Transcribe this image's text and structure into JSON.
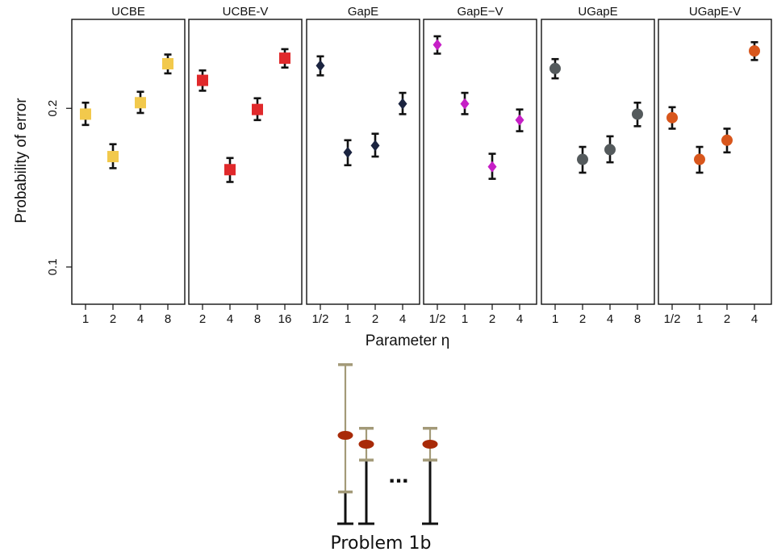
{
  "chart_data": {
    "type": "scatter",
    "ylabel": "Probability of error",
    "xlabel": "Parameter η",
    "y_scale": "log",
    "ylim": [
      0.085,
      0.295
    ],
    "y_ticks": [
      {
        "value": 0.1,
        "label": "0.1"
      },
      {
        "value": 0.2,
        "label": "0.2"
      }
    ],
    "panels": [
      {
        "title": "UCBE",
        "marker": "square",
        "color": "#f2c94c",
        "categories": [
          "1",
          "2",
          "4",
          "8"
        ],
        "values": [
          0.195,
          0.162,
          0.205,
          0.243
        ],
        "err_low": [
          0.186,
          0.154,
          0.196,
          0.233
        ],
        "err_high": [
          0.205,
          0.171,
          0.215,
          0.253
        ]
      },
      {
        "title": "UCBE-V",
        "marker": "square",
        "color": "#e0292b",
        "categories": [
          "2",
          "4",
          "8",
          "16"
        ],
        "values": [
          0.226,
          0.153,
          0.199,
          0.249
        ],
        "err_low": [
          0.216,
          0.145,
          0.19,
          0.239
        ],
        "err_high": [
          0.236,
          0.161,
          0.209,
          0.259
        ]
      },
      {
        "title": "GapE",
        "marker": "diamond",
        "color": "#1b2440",
        "categories": [
          "1/2",
          "1",
          "2",
          "4"
        ],
        "values": [
          0.241,
          0.165,
          0.17,
          0.204
        ],
        "err_low": [
          0.231,
          0.156,
          0.162,
          0.195
        ],
        "err_high": [
          0.251,
          0.174,
          0.179,
          0.214
        ]
      },
      {
        "title": "GapE−V",
        "marker": "diamond",
        "color": "#c61fc6",
        "categories": [
          "1/2",
          "1",
          "2",
          "4"
        ],
        "values": [
          0.264,
          0.204,
          0.155,
          0.19
        ],
        "err_low": [
          0.254,
          0.195,
          0.147,
          0.181
        ],
        "err_high": [
          0.274,
          0.214,
          0.164,
          0.199
        ]
      },
      {
        "title": "UGapE",
        "marker": "circle",
        "color": "#545a5c",
        "categories": [
          "1",
          "2",
          "4",
          "8"
        ],
        "values": [
          0.238,
          0.16,
          0.167,
          0.195
        ],
        "err_low": [
          0.228,
          0.151,
          0.158,
          0.185
        ],
        "err_high": [
          0.248,
          0.169,
          0.177,
          0.205
        ]
      },
      {
        "title": "UGapE-V",
        "marker": "circle",
        "color": "#d8561c",
        "categories": [
          "1/2",
          "1",
          "2",
          "4"
        ],
        "values": [
          0.192,
          0.16,
          0.174,
          0.257
        ],
        "err_low": [
          0.183,
          0.151,
          0.165,
          0.247
        ],
        "err_high": [
          0.201,
          0.169,
          0.183,
          0.267
        ]
      }
    ]
  },
  "problem_illustration": {
    "caption": "Problem 1b",
    "ellipsis": "...",
    "marker_color": "#a82a08",
    "bracket_color": "#a39a78",
    "arms": [
      {
        "mean": 0.5,
        "upper": 0.9,
        "lower": 0.18
      },
      {
        "mean": 0.45,
        "upper": 0.54,
        "lower": 0.36
      },
      {
        "mean": 0.45,
        "upper": 0.54,
        "lower": 0.36
      }
    ]
  }
}
